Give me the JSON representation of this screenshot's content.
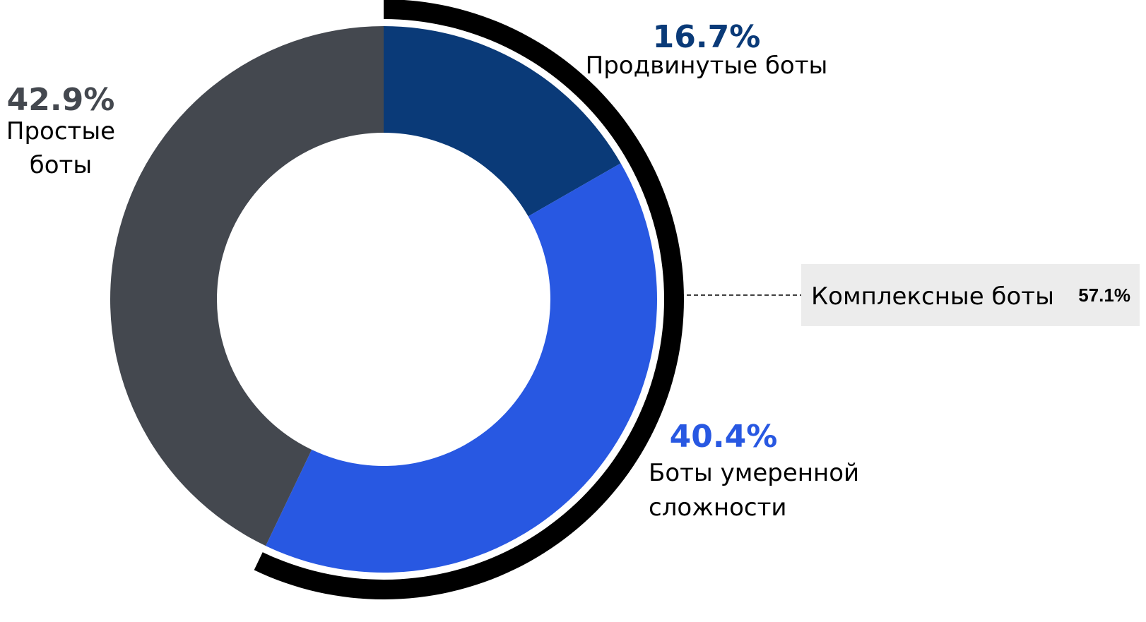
{
  "chart_data": {
    "type": "pie",
    "variant": "donut",
    "categories": [
      "Продвинутые боты",
      "Боты умеренной сложности",
      "Простые боты"
    ],
    "values": [
      16.7,
      40.4,
      42.9
    ],
    "value_labels": [
      "16.7%",
      "40.4%",
      "42.9%"
    ],
    "label_lines": [
      [
        "Продвинутые боты"
      ],
      [
        "Боты умеренной",
        "сложности"
      ],
      [
        "Простые",
        "боты"
      ]
    ],
    "colors": [
      "#0a3a78",
      "#2858e2",
      "#44484f"
    ],
    "group": {
      "label": "Комплексные боты",
      "value": 57.1,
      "value_label": "57.1%",
      "members": [
        "Продвинутые боты",
        "Боты умеренной сложности"
      ],
      "arc_color": "#000000",
      "box_color": "#ececec"
    },
    "title": "",
    "legend": "none"
  }
}
